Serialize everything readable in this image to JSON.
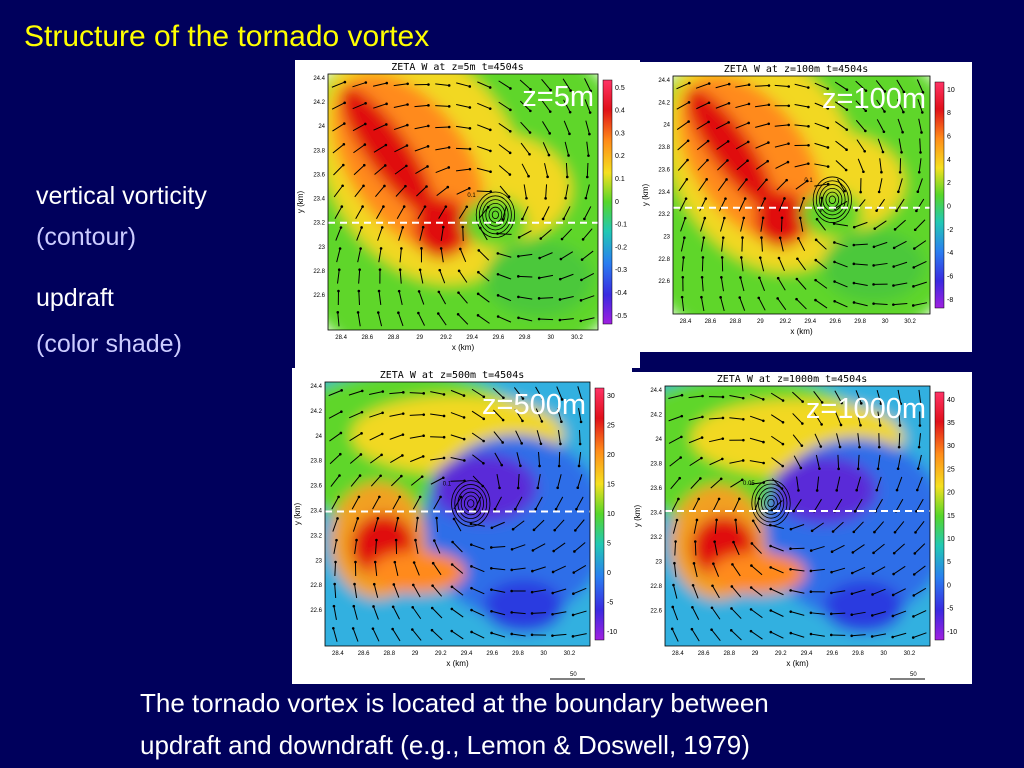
{
  "title": "Structure of the tornado vortex",
  "bullets": [
    {
      "text": "vertical vorticity",
      "sub": "(contour)"
    },
    {
      "text": "updraft",
      "sub": "(color shade)"
    }
  ],
  "caption": [
    "The tornado vortex is located at the boundary between",
    "updraft and downdraft (e.g., Lemon & Doswell, 1979)"
  ],
  "x_label": "x (km)",
  "y_label": "y (km)",
  "x_ticks": [
    "28.4",
    "28.6",
    "28.8",
    "29",
    "29.2",
    "29.4",
    "29.6",
    "29.8",
    "30",
    "30.2"
  ],
  "y_ticks": [
    "24.4",
    "24.2",
    "24",
    "23.8",
    "23.6",
    "23.4",
    "23.2",
    "23",
    "22.8",
    "22.6"
  ],
  "panels": [
    {
      "title": "ZETA W at z=5m t=4504s",
      "label": "z=5m",
      "colorbar": [
        "0.5",
        "0.4",
        "0.3",
        "0.2",
        "0.1",
        "0",
        "-0.1",
        "-0.2",
        "-0.3",
        "-0.4",
        "-0.5"
      ],
      "contour_label": "0.1"
    },
    {
      "title": "ZETA W at z=100m t=4504s",
      "label": "z=100m",
      "colorbar": [
        "10",
        "8",
        "6",
        "4",
        "2",
        "0",
        "-2",
        "-4",
        "-6",
        "-8"
      ],
      "contour_label": "0.1"
    },
    {
      "title": "ZETA W at z=500m t=4504s",
      "label": "z=500m",
      "colorbar": [
        "30",
        "25",
        "20",
        "15",
        "10",
        "5",
        "0",
        "-5",
        "-10"
      ],
      "contour_label": "0.1",
      "vector_scale": "50"
    },
    {
      "title": "ZETA W at z=1000m t=4504s",
      "label": "z=1000m",
      "colorbar": [
        "40",
        "35",
        "30",
        "25",
        "20",
        "15",
        "10",
        "5",
        "0",
        "-5",
        "-10"
      ],
      "contour_label": "0.05",
      "vector_scale": "50"
    }
  ]
}
